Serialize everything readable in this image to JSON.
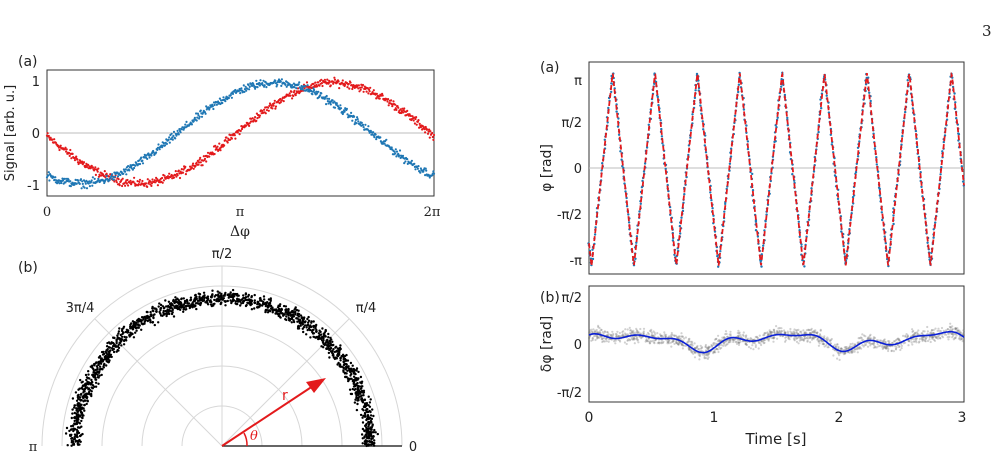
{
  "page_number": "3",
  "chart_data": [
    {
      "id": "left_a",
      "type": "scatter",
      "panel_label": "(a)",
      "xlabel": "Δφ",
      "ylabel": "Signal [arb. u.]",
      "xlim": [
        0,
        6.2832
      ],
      "ylim": [
        -1.25,
        1.25
      ],
      "xtick_labels": [
        "0",
        "π",
        "2π"
      ],
      "ytick_labels": [
        "1",
        "0",
        "-1"
      ],
      "grid": "horizontal-zero-line",
      "series": [
        {
          "color": "#e31a1c",
          "model": "cos(x - 4.65)",
          "noise_amplitude": 0.12
        },
        {
          "color": "#1f77b4",
          "model": "cos(x - 3.70)",
          "noise_amplitude": 0.12
        }
      ]
    },
    {
      "id": "left_b",
      "type": "scatter",
      "panel_label": "(b)",
      "coordinate_system": "polar",
      "angle_labels": [
        "π/2",
        "3π/4",
        "π/4",
        "π",
        "0"
      ],
      "radius_arrow_label": "r",
      "angle_arc_label": "θ",
      "point_color": "#000000",
      "ring_radius_mean": 0.82,
      "ring_radius_spread": 0.06,
      "arrow_color": "#e31a1c",
      "arrow_angle_deg": 30
    },
    {
      "id": "right_a",
      "type": "line",
      "panel_label": "(a)",
      "ylabel": "φ [rad]",
      "xlim": [
        0,
        3
      ],
      "ylim": [
        -3.4,
        3.5
      ],
      "ytick_labels": [
        "π",
        "π/2",
        "0",
        "-π/2",
        "-π"
      ],
      "series": [
        {
          "color": "#1f77b4",
          "style": "points",
          "periods": 9,
          "amplitude": 3.14
        },
        {
          "color": "#e31a1c",
          "style": "dashed-line",
          "periods": 9,
          "amplitude": 3.14
        }
      ]
    },
    {
      "id": "right_b",
      "type": "line",
      "panel_label": "(b)",
      "xlabel": "Time [s]",
      "ylabel": "δφ [rad]",
      "xlim": [
        0,
        3
      ],
      "ylim": [
        -1.7,
        1.7
      ],
      "xtick_labels": [
        "0",
        "1",
        "2",
        "3"
      ],
      "ytick_labels": [
        "π/2",
        "0",
        "-π/2"
      ],
      "series": [
        {
          "color": "#7a7a7a",
          "style": "noisy-points",
          "noise_amplitude": 0.3
        },
        {
          "color": "#0a1fd6",
          "style": "smoothed-line",
          "mean_offset": 0.1
        }
      ]
    }
  ]
}
